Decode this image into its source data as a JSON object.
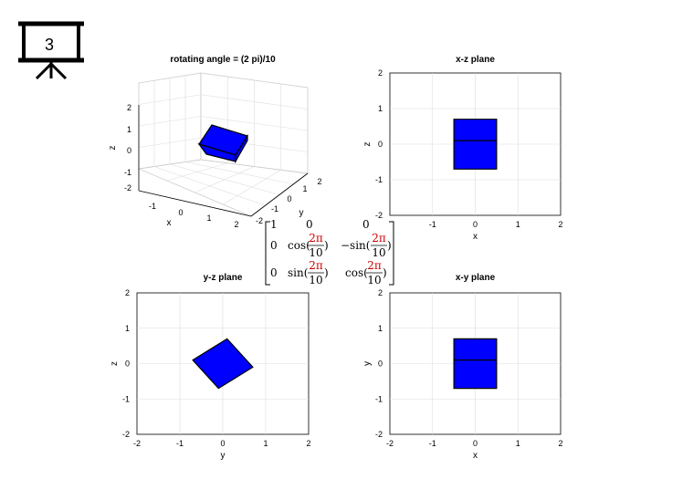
{
  "slide_number": "3",
  "icon": "presentation-board-icon",
  "face_color": "#0000ff",
  "chart_data": [
    {
      "type": "surface",
      "title": "rotating angle = (2 pi)/10",
      "xlabel": "x",
      "ylabel": "y",
      "zlabel": "z",
      "xlim": [
        -2,
        2
      ],
      "ylim": [
        -2,
        2
      ],
      "zlim": [
        -2,
        2
      ],
      "xticks": [
        "-1",
        "0",
        "1",
        "2"
      ],
      "yticks": [
        "-2",
        "-1",
        "0",
        "1",
        "2"
      ],
      "zticks": [
        "2",
        "1",
        "0",
        "-1",
        "-2"
      ],
      "grid": true
    },
    {
      "type": "polygon",
      "title": "x-z plane",
      "xlabel": "x",
      "ylabel": "z",
      "xlim": [
        -2,
        2
      ],
      "ylim": [
        -2,
        2
      ],
      "xticks": [
        "-1",
        "0",
        "1",
        "2"
      ],
      "yticks": [
        "2",
        "1",
        "0",
        "-1",
        "-2"
      ],
      "polygon": [
        [
          -0.5,
          -0.7
        ],
        [
          0.5,
          -0.7
        ],
        [
          0.5,
          0.7
        ],
        [
          -0.5,
          0.7
        ]
      ],
      "inner_line": [
        [
          -0.5,
          0.1
        ],
        [
          0.5,
          0.1
        ]
      ],
      "grid": true
    },
    {
      "type": "polygon",
      "title": "y-z plane",
      "xlabel": "y",
      "ylabel": "z",
      "xlim": [
        -2,
        2
      ],
      "ylim": [
        -2,
        2
      ],
      "xticks": [
        "-2",
        "-1",
        "0",
        "1",
        "2"
      ],
      "yticks": [
        "2",
        "1",
        "0",
        "-1",
        "-2"
      ],
      "polygon": [
        [
          -0.7,
          0.1
        ],
        [
          0.1,
          0.7
        ],
        [
          0.7,
          -0.1
        ],
        [
          -0.1,
          -0.7
        ]
      ],
      "grid": true
    },
    {
      "type": "polygon",
      "title": "x-y plane",
      "xlabel": "x",
      "ylabel": "y",
      "xlim": [
        -2,
        2
      ],
      "ylim": [
        -2,
        2
      ],
      "xticks": [
        "-2",
        "-1",
        "0",
        "1",
        "2"
      ],
      "yticks": [
        "2",
        "1",
        "0",
        "-1",
        "-2"
      ],
      "polygon": [
        [
          -0.5,
          -0.7
        ],
        [
          0.5,
          -0.7
        ],
        [
          0.5,
          0.7
        ],
        [
          -0.5,
          0.7
        ]
      ],
      "inner_line": [
        [
          -0.5,
          0.1
        ],
        [
          0.5,
          0.1
        ]
      ],
      "grid": true
    }
  ],
  "matrix": {
    "row1": [
      "1",
      "0",
      "0"
    ],
    "row2": [
      "0",
      "cos(",
      "2π",
      "10",
      ")",
      "−sin(",
      "2π",
      "10",
      ")"
    ],
    "row3": [
      "0",
      "sin(",
      "2π",
      "10",
      ")",
      "cos(",
      "2π",
      "10",
      ")"
    ]
  }
}
